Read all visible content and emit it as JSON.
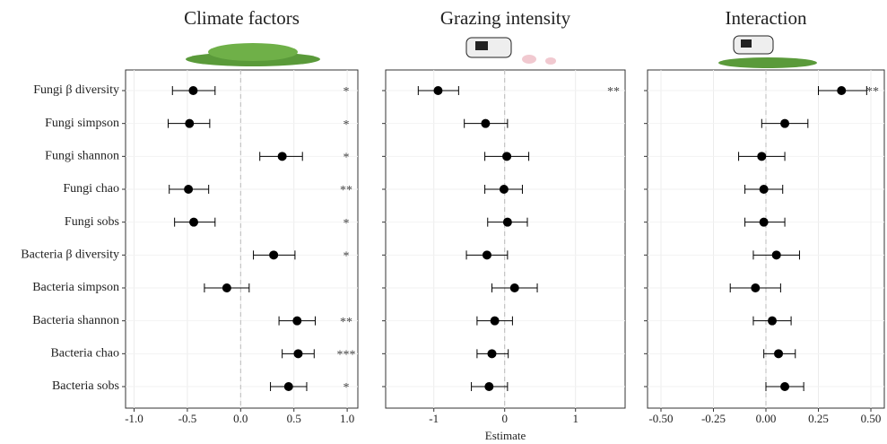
{
  "chart_data": [
    {
      "type": "forest",
      "title": "Climate factors",
      "categories": [
        "Fungi β diversity",
        "Fungi simpson",
        "Fungi shannon",
        "Fungi chao",
        "Fungi sobs",
        "Bacteria β diversity",
        "Bacteria simpson",
        "Bacteria shannon",
        "Bacteria chao",
        "Bacteria sobs"
      ],
      "values": [
        -0.445,
        -0.48,
        0.39,
        -0.49,
        -0.44,
        0.31,
        -0.13,
        0.53,
        0.54,
        0.45
      ],
      "lower": [
        -0.64,
        -0.68,
        0.18,
        -0.67,
        -0.62,
        0.12,
        -0.34,
        0.36,
        0.39,
        0.28
      ],
      "upper": [
        -0.24,
        -0.29,
        0.58,
        -0.3,
        -0.24,
        0.51,
        0.08,
        0.7,
        0.69,
        0.62
      ],
      "significance": [
        "*",
        "*",
        "*",
        "**",
        "*",
        "*",
        null,
        "**",
        "***",
        "*"
      ],
      "xlim": [
        -1.08,
        1.1
      ],
      "xticks": [
        {
          "value": -1,
          "label": "-1.0"
        },
        -0.5,
        {
          "value": 0,
          "label": "0.0"
        },
        0.5,
        {
          "value": 1,
          "label": "1.0"
        }
      ],
      "color": "#000000",
      "grid": true
    },
    {
      "type": "forest",
      "title": "Grazing intensity",
      "xlabel": "Estimate",
      "values": [
        -0.94,
        -0.27,
        0.03,
        -0.01,
        0.04,
        -0.25,
        0.14,
        -0.14,
        -0.18,
        -0.22
      ],
      "lower": [
        -1.22,
        -0.57,
        -0.28,
        -0.28,
        -0.24,
        -0.54,
        -0.18,
        -0.39,
        -0.39,
        -0.47
      ],
      "upper": [
        -0.65,
        0.04,
        0.34,
        0.25,
        0.32,
        0.04,
        0.46,
        0.11,
        0.05,
        0.04
      ],
      "significance": [
        "**",
        null,
        null,
        null,
        null,
        null,
        null,
        null,
        null,
        null
      ],
      "xlim": [
        -1.68,
        1.7
      ],
      "xticks": [
        -1,
        0,
        1
      ],
      "color": "#000000",
      "grid": true
    },
    {
      "type": "forest",
      "title": "Interaction",
      "values": [
        0.36,
        0.09,
        -0.02,
        -0.01,
        -0.01,
        0.05,
        -0.05,
        0.03,
        0.06,
        0.09
      ],
      "lower": [
        0.25,
        -0.02,
        -0.13,
        -0.1,
        -0.1,
        -0.06,
        -0.17,
        -0.06,
        -0.01,
        0.0
      ],
      "upper": [
        0.48,
        0.2,
        0.09,
        0.08,
        0.09,
        0.16,
        0.07,
        0.12,
        0.14,
        0.18
      ],
      "significance": [
        "**",
        null,
        null,
        null,
        null,
        null,
        null,
        null,
        null,
        null
      ],
      "xlim": [
        -0.564,
        0.564
      ],
      "xticks": [
        {
          "value": -0.5,
          "label": "-0.50"
        },
        -0.25,
        {
          "value": 0,
          "label": "0.00"
        },
        0.25,
        {
          "value": 0.5,
          "label": "0.50"
        }
      ],
      "color": "#000000",
      "grid": true
    }
  ]
}
